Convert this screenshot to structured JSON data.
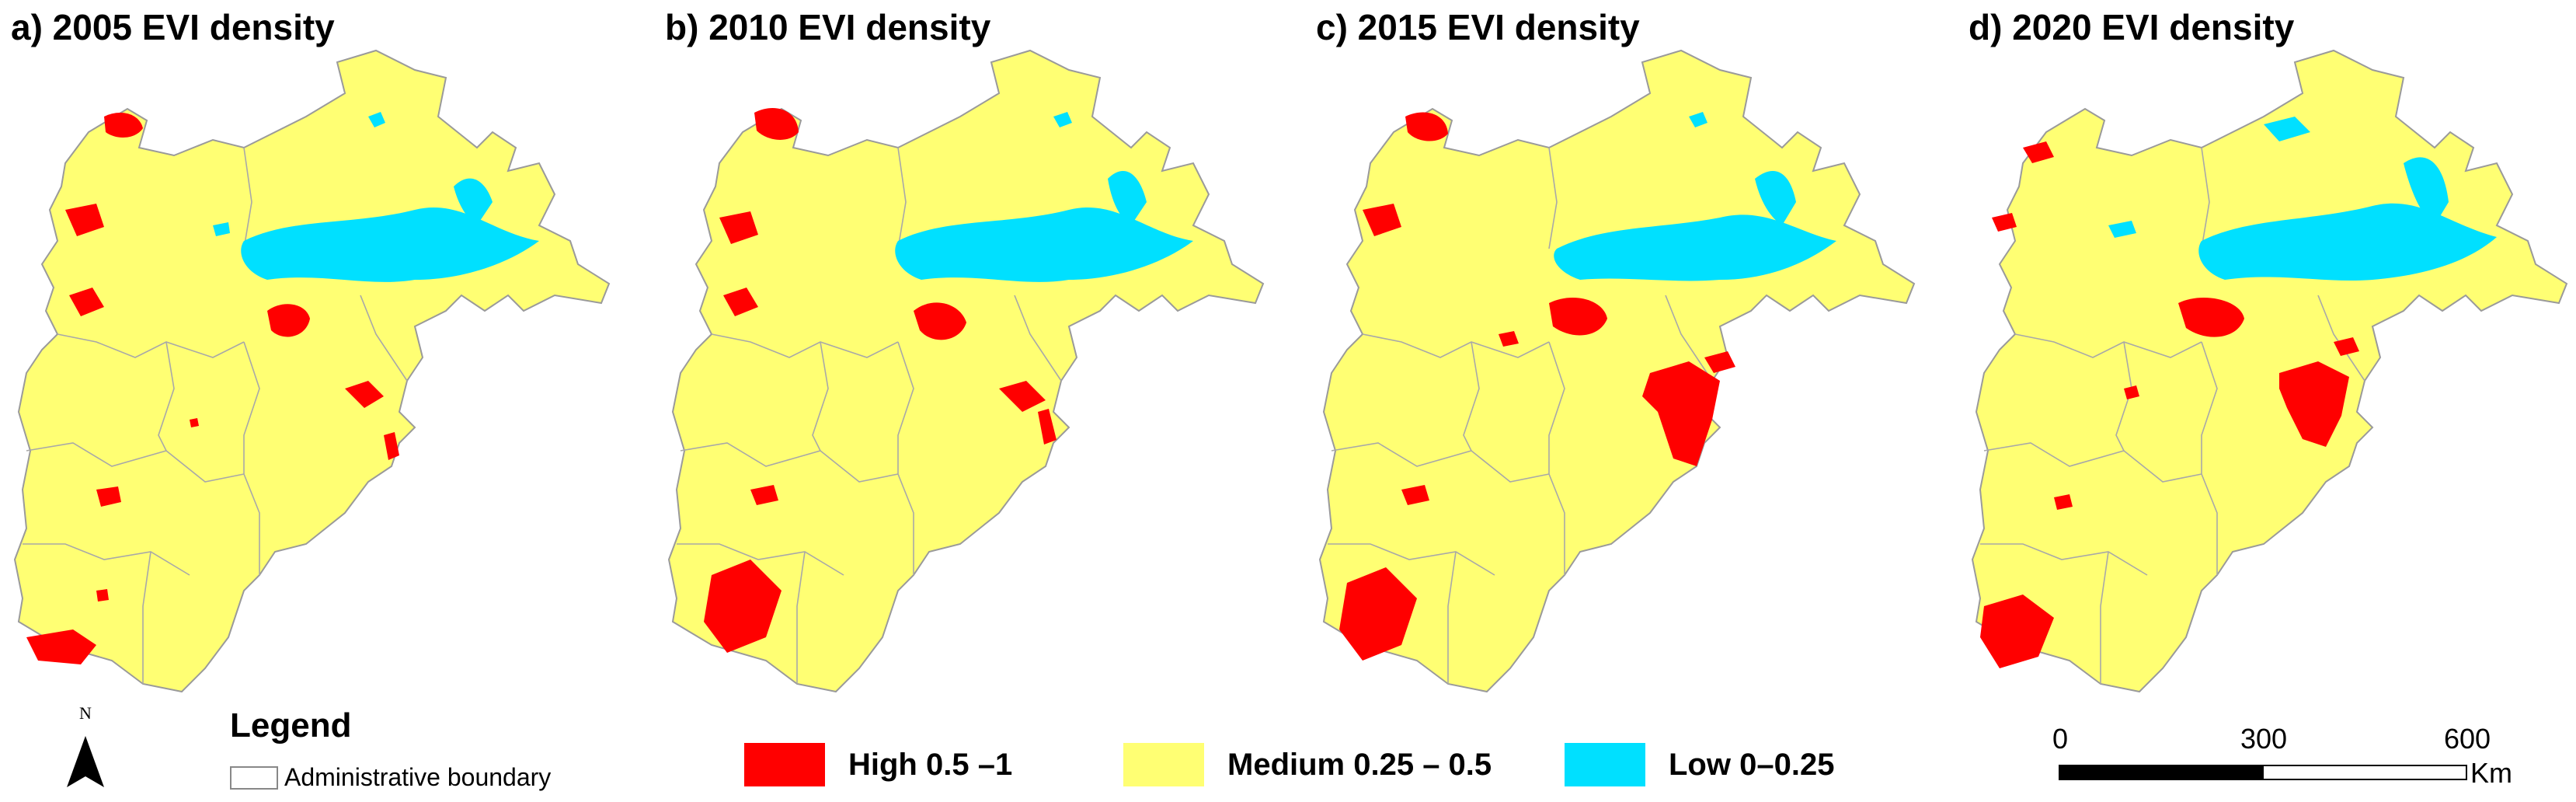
{
  "colors": {
    "high": "#ff0000",
    "medium": "#ffff73",
    "low": "#00e0ff",
    "boundary": "#9a9a9a"
  },
  "panels": [
    {
      "title": "a) 2005 EVI density"
    },
    {
      "title": "b) 2010 EVI density"
    },
    {
      "title": "c) 2015 EVI density"
    },
    {
      "title": "d) 2020 EVI density"
    }
  ],
  "north_arrow": {
    "label": "N"
  },
  "legend": {
    "title": "Legend",
    "boundary_label": "Administrative boundary",
    "classes": [
      {
        "label": "High 0.5 –1",
        "color": "#ff0000"
      },
      {
        "label": "Medium 0.25 – 0.5",
        "color": "#ffff73"
      },
      {
        "label": "Low 0–0.25",
        "color": "#00e0ff"
      }
    ]
  },
  "scale_bar": {
    "ticks": [
      "0",
      "300",
      "600"
    ],
    "unit": "Km"
  }
}
